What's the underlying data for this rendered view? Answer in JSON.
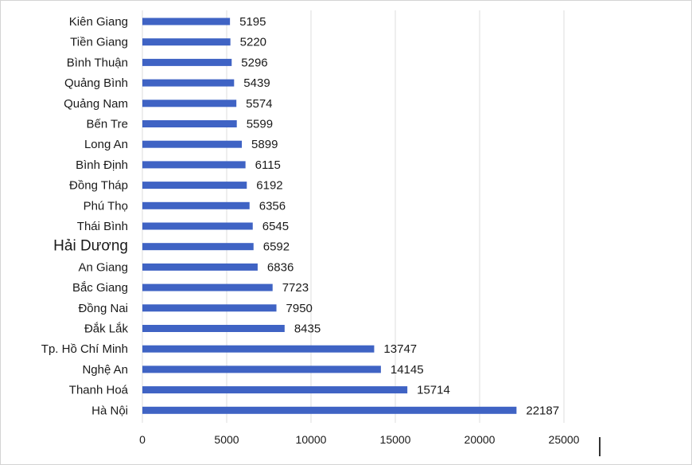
{
  "chart_data": {
    "type": "bar",
    "orientation": "horizontal",
    "title": "",
    "xlabel": "",
    "ylabel": "",
    "categories": [
      "Kiên Giang",
      "Tiền Giang",
      "Bình Thuận",
      "Quảng Bình",
      "Quảng Nam",
      "Bến Tre",
      "Long An",
      "Bình Định",
      "Đồng Tháp",
      "Phú Thọ",
      "Thái Bình",
      "Hải Dương",
      "An Giang",
      "Bắc Giang",
      "Đồng Nai",
      "Đắk Lắk",
      "Tp. Hồ Chí Minh",
      "Nghệ An",
      "Thanh Hoá",
      "Hà Nội"
    ],
    "values": [
      5195,
      5220,
      5296,
      5439,
      5574,
      5599,
      5899,
      6115,
      6192,
      6356,
      6545,
      6592,
      6836,
      7723,
      7950,
      8435,
      13747,
      14145,
      15714,
      22187
    ],
    "xlim": [
      0,
      25000
    ],
    "xticks": [
      "0",
      "5000",
      "10000",
      "15000",
      "20000",
      "25000"
    ],
    "xtick_values": [
      0,
      5000,
      10000,
      15000,
      20000,
      25000
    ],
    "grid": "vertical",
    "legend": "none",
    "bar_color": "#3f63c4",
    "emphasized_category": "Hải Dương"
  }
}
